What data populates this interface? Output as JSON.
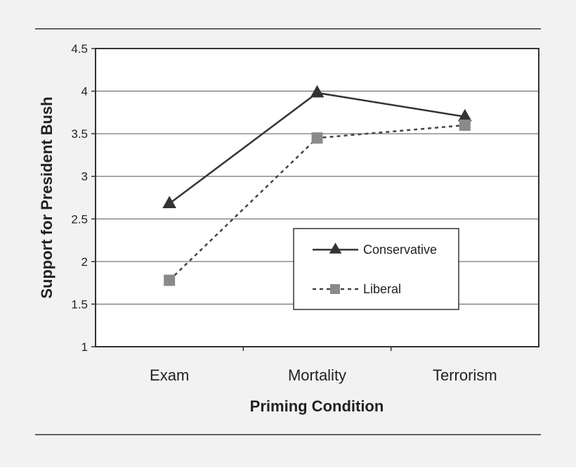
{
  "chart_data": {
    "type": "line",
    "title": "",
    "xlabel": "Priming Condition",
    "ylabel": "Support for President Bush",
    "categories": [
      "Exam",
      "Mortality",
      "Terrorism"
    ],
    "ylim": [
      1,
      4.5
    ],
    "yticks": [
      "1",
      "1.5",
      "2",
      "2.5",
      "3",
      "3.5",
      "4",
      "4.5"
    ],
    "grid": true,
    "legend_position": "bottom-right",
    "series": [
      {
        "name": "Conservative",
        "values": [
          2.68,
          3.98,
          3.7
        ],
        "marker": "triangle",
        "line_style": "solid",
        "color": "#333333"
      },
      {
        "name": "Liberal",
        "values": [
          1.78,
          3.45,
          3.6
        ],
        "marker": "square",
        "line_style": "dashed",
        "color": "#8a8a8a"
      }
    ]
  }
}
